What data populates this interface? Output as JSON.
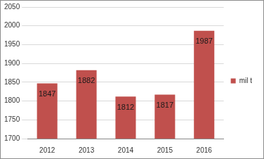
{
  "chart_data": {
    "type": "bar",
    "categories": [
      "2012",
      "2013",
      "2014",
      "2015",
      "2016"
    ],
    "series": [
      {
        "name": "mil t",
        "color": "#c0504d",
        "values": [
          1847,
          1882,
          1812,
          1817,
          1987
        ]
      }
    ],
    "ylim": [
      1700,
      2050
    ],
    "yticks": [
      1700,
      1750,
      1800,
      1850,
      1900,
      1950,
      2000,
      2050
    ],
    "grid": true,
    "legend": "right",
    "data_labels": true
  }
}
